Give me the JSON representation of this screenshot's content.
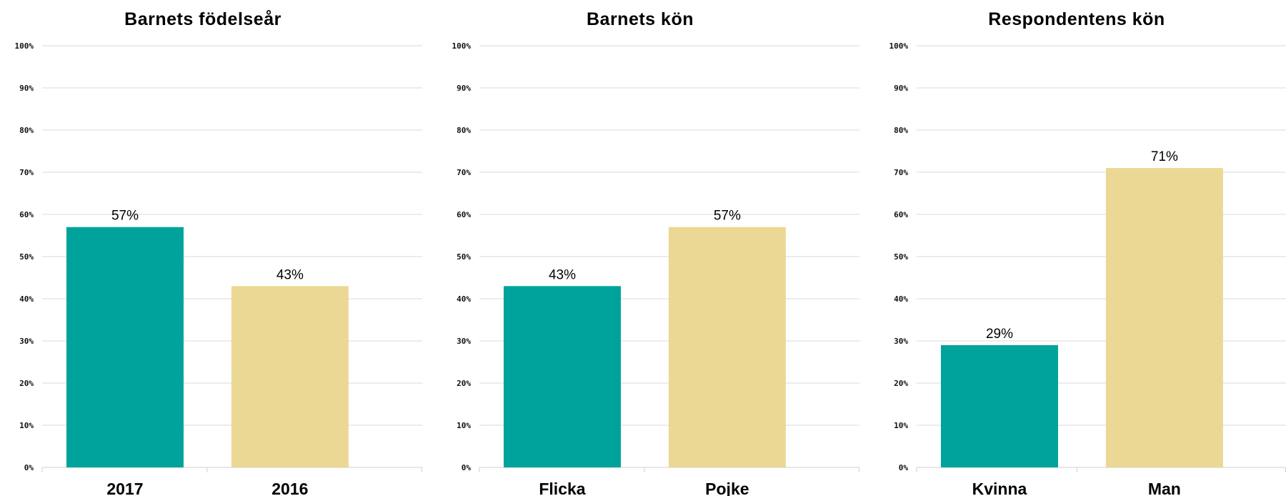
{
  "colors": {
    "teal": "#00A39B",
    "sand": "#EBD894",
    "grid": "#D9D9D9",
    "text": "#000000"
  },
  "y_ticks": [
    "0%",
    "10%",
    "20%",
    "30%",
    "40%",
    "50%",
    "60%",
    "70%",
    "80%",
    "90%",
    "100%"
  ],
  "chart_data": [
    {
      "type": "bar",
      "title": "Barnets födelseår",
      "categories": [
        "2017",
        "2016"
      ],
      "values": [
        57,
        43
      ],
      "value_labels": [
        "57%",
        "43%"
      ],
      "bar_colors": [
        "#00A39B",
        "#EBD894"
      ],
      "ylim": [
        0,
        100
      ],
      "y_unit": "%",
      "grid": true,
      "xlabel": "",
      "ylabel": ""
    },
    {
      "type": "bar",
      "title": "Barnets kön",
      "categories": [
        "Flicka",
        "Pojke"
      ],
      "values": [
        43,
        57
      ],
      "value_labels": [
        "43%",
        "57%"
      ],
      "bar_colors": [
        "#00A39B",
        "#EBD894"
      ],
      "ylim": [
        0,
        100
      ],
      "y_unit": "%",
      "grid": true,
      "xlabel": "",
      "ylabel": ""
    },
    {
      "type": "bar",
      "title": "Respondentens kön",
      "categories": [
        "Kvinna",
        "Man"
      ],
      "values": [
        29,
        71
      ],
      "value_labels": [
        "29%",
        "71%"
      ],
      "bar_colors": [
        "#00A39B",
        "#EBD894"
      ],
      "ylim": [
        0,
        100
      ],
      "y_unit": "%",
      "grid": true,
      "xlabel": "",
      "ylabel": ""
    }
  ]
}
